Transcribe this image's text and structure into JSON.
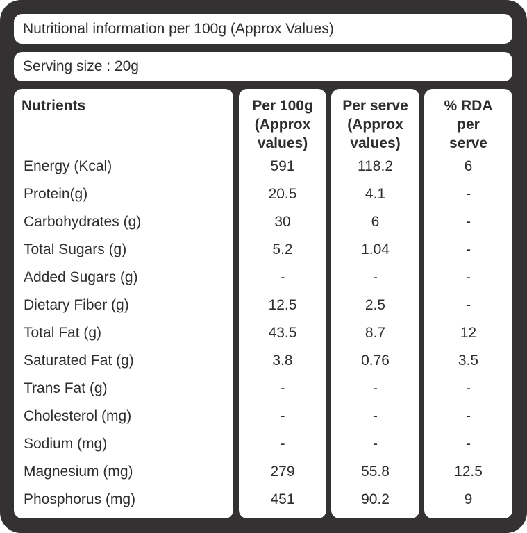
{
  "title": "Nutritional information per 100g (Approx Values)",
  "serving_size": "Serving size : 20g",
  "columns": {
    "nutrients": "Nutrients",
    "per_100g": "Per 100g\n(Approx\nvalues)",
    "per_serve": "Per serve\n(Approx\nvalues)",
    "rda": "% RDA\nper\nserve"
  },
  "rows": [
    {
      "nutrient": "Energy (Kcal)",
      "per_100g": "591",
      "per_serve": "118.2",
      "rda": "6"
    },
    {
      "nutrient": "Protein(g)",
      "per_100g": "20.5",
      "per_serve": "4.1",
      "rda": "-"
    },
    {
      "nutrient": "Carbohydrates (g)",
      "per_100g": "30",
      "per_serve": "6",
      "rda": "-"
    },
    {
      "nutrient": "Total Sugars (g)",
      "per_100g": "5.2",
      "per_serve": "1.04",
      "rda": "-"
    },
    {
      "nutrient": "Added Sugars (g)",
      "per_100g": "-",
      "per_serve": "-",
      "rda": "-"
    },
    {
      "nutrient": "Dietary Fiber (g)",
      "per_100g": "12.5",
      "per_serve": "2.5",
      "rda": "-"
    },
    {
      "nutrient": "Total Fat (g)",
      "per_100g": "43.5",
      "per_serve": "8.7",
      "rda": "12"
    },
    {
      "nutrient": "Saturated Fat (g)",
      "per_100g": "3.8",
      "per_serve": "0.76",
      "rda": "3.5"
    },
    {
      "nutrient": "Trans Fat (g)",
      "per_100g": "-",
      "per_serve": "-",
      "rda": "-"
    },
    {
      "nutrient": "Cholesterol (mg)",
      "per_100g": "-",
      "per_serve": "-",
      "rda": "-"
    },
    {
      "nutrient": "Sodium (mg)",
      "per_100g": "-",
      "per_serve": "-",
      "rda": "-"
    },
    {
      "nutrient": "Magnesium (mg)",
      "per_100g": "279",
      "per_serve": "55.8",
      "rda": "12.5"
    },
    {
      "nutrient": "Phosphorus (mg)",
      "per_100g": "451",
      "per_serve": "90.2",
      "rda": "9"
    }
  ],
  "colors": {
    "frame": "#333132",
    "panel": "#ffffff",
    "text": "#2f2d2e"
  }
}
